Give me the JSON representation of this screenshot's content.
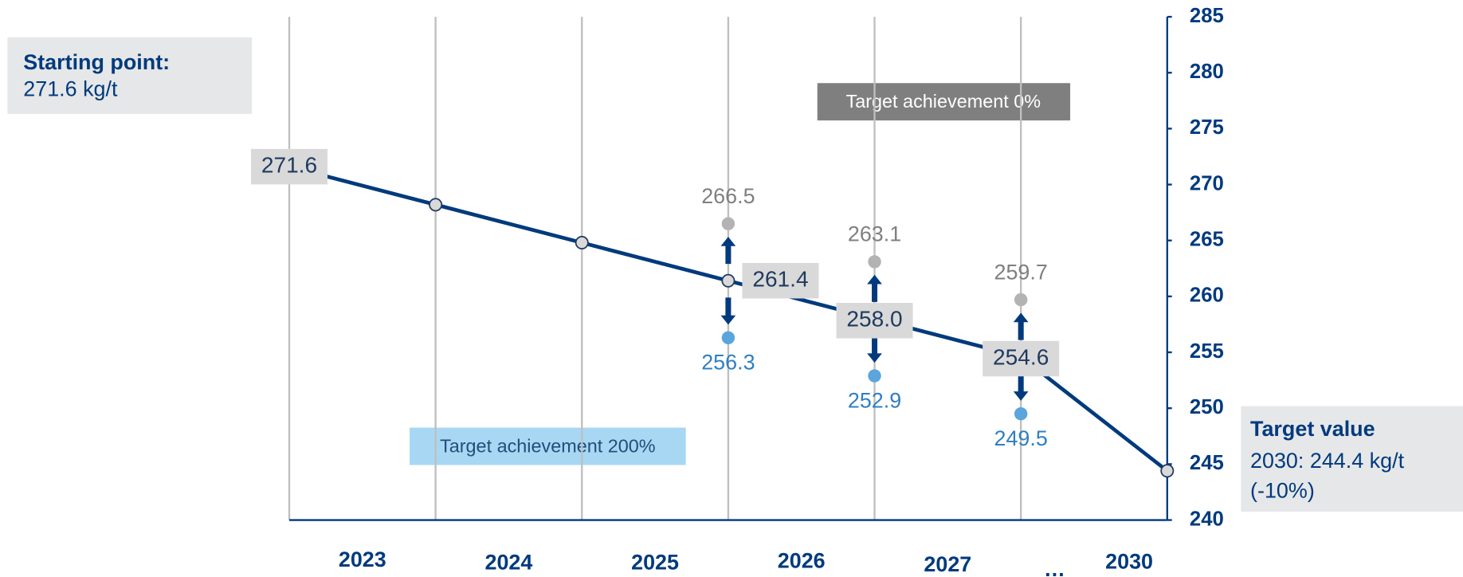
{
  "chart_data": {
    "type": "line",
    "categories": [
      null,
      null,
      null,
      null,
      null,
      null,
      null
    ],
    "period_labels": [
      "2023",
      "2024",
      "2025",
      "2026",
      "2027",
      "…",
      "2030"
    ],
    "series": [
      {
        "color": "#003a7d",
        "values": [
          271.6,
          268.2,
          264.8,
          261.4,
          258.0,
          254.6,
          244.4
        ],
        "value_labels": [
          "271.6",
          null,
          null,
          "261.4",
          "258.0",
          "254.6",
          null
        ]
      },
      {
        "color": "#b3b3b3",
        "values": [
          null,
          null,
          null,
          266.5,
          263.1,
          259.7,
          null
        ]
      },
      {
        "color": "#5aa5dc",
        "values": [
          null,
          null,
          null,
          256.3,
          252.9,
          249.5,
          null
        ]
      }
    ],
    "ylim": [
      240,
      285
    ],
    "yticks": [
      240,
      245,
      250,
      255,
      260,
      265,
      270,
      275,
      280,
      285
    ],
    "annotations": {
      "start_title": "Starting point:",
      "start_value": "271.6 kg/t",
      "target_title": "Target value",
      "target_line1": "2030: 244.4 kg/t",
      "target_line2": "(-10%)",
      "achievement_0": "Target achievement 0%",
      "achievement_200": "Target achievement 200%"
    }
  }
}
